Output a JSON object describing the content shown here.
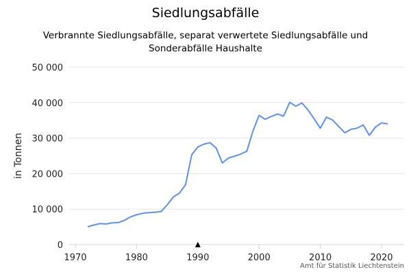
{
  "chart_data": {
    "type": "line",
    "title": "Siedlungsabfälle",
    "subtitle": "Verbrannte Siedlungsabfälle, separat verwertete Siedlungsabfälle und Sonderabfälle Haushalte",
    "xlabel": "",
    "ylabel": "in Tonnen",
    "credits": "Amt für Statistik Liechtenstein",
    "xlim": [
      1970,
      2023
    ],
    "ylim": [
      0,
      50000
    ],
    "xticks": [
      "1970",
      "1980",
      "1990",
      "2000",
      "2010",
      "2020"
    ],
    "yticks": [
      "0",
      "10 000",
      "20 000",
      "30 000",
      "40 000",
      "50 000"
    ],
    "grid": true,
    "color": "#5b8ff9",
    "marker_annotation": {
      "x": 1990,
      "symbol": "triangle-up"
    },
    "x": [
      1972,
      1973,
      1974,
      1975,
      1976,
      1977,
      1978,
      1979,
      1980,
      1981,
      1982,
      1983,
      1984,
      1985,
      1986,
      1987,
      1988,
      1989,
      1990,
      1991,
      1992,
      1993,
      1994,
      1995,
      1996,
      1997,
      1998,
      1999,
      2000,
      2001,
      2002,
      2003,
      2004,
      2005,
      2006,
      2007,
      2008,
      2009,
      2010,
      2011,
      2012,
      2013,
      2014,
      2015,
      2016,
      2017,
      2018,
      2019,
      2020,
      2021
    ],
    "values": [
      5000,
      5500,
      5900,
      5800,
      6100,
      6200,
      6800,
      7800,
      8400,
      8800,
      9000,
      9100,
      9300,
      11200,
      13400,
      14500,
      16900,
      25300,
      27500,
      28300,
      28700,
      27200,
      23000,
      24400,
      24900,
      25500,
      26300,
      32000,
      36400,
      35300,
      36100,
      36800,
      36200,
      40100,
      39000,
      39900,
      37900,
      35400,
      32800,
      35900,
      35100,
      33300,
      31500,
      32500,
      32800,
      33700,
      30800,
      33100,
      34300,
      34000
    ]
  }
}
